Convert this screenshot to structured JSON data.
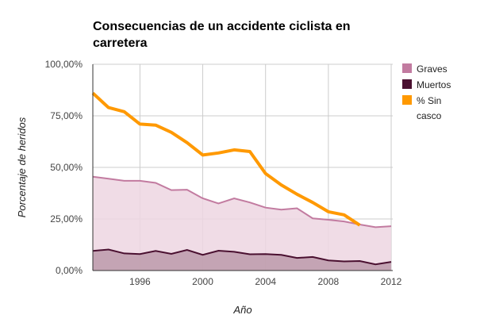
{
  "chart_data": {
    "type": "area",
    "title_lines": [
      "Consecuencias de un accidente ciclista en",
      "carretera"
    ],
    "xlabel": "Año",
    "ylabel": "Porcentaje de heridos",
    "x": [
      1993,
      1994,
      1995,
      1996,
      1997,
      1998,
      1999,
      2000,
      2001,
      2002,
      2003,
      2004,
      2005,
      2006,
      2007,
      2008,
      2009,
      2010,
      2011,
      2012
    ],
    "xticks": [
      "1996",
      "2000",
      "2004",
      "2008",
      "2012"
    ],
    "xtick_values": [
      1996,
      2000,
      2004,
      2008,
      2012
    ],
    "yticks": [
      "0,00%",
      "25,00%",
      "50,00%",
      "75,00%",
      "100,00%"
    ],
    "ytick_values": [
      0,
      25,
      50,
      75,
      100
    ],
    "ylim": [
      0,
      100
    ],
    "grid": true,
    "legend_position": "right",
    "series": [
      {
        "name": "Graves",
        "kind": "area",
        "color": "#c27ba0",
        "fill": "#edd6e2",
        "values": [
          45.5,
          44.5,
          43.5,
          43.5,
          42.5,
          39,
          39.2,
          35,
          32.5,
          35,
          33,
          30.5,
          29.5,
          30.2,
          25.3,
          24.6,
          23.8,
          22.3,
          21,
          21.5
        ]
      },
      {
        "name": "Muertos",
        "kind": "area",
        "color": "#4a1030",
        "fill": "#bc9aaa",
        "values": [
          9.5,
          10.2,
          8.3,
          8,
          9.5,
          8.1,
          10,
          7.6,
          9.6,
          9.1,
          7.9,
          8,
          7.6,
          6.1,
          6.6,
          4.9,
          4.4,
          4.6,
          3,
          4.2
        ]
      },
      {
        "name": "% Sin casco",
        "kind": "line",
        "color": "#ff9900",
        "values": [
          86,
          79,
          77,
          71,
          70.5,
          67,
          62,
          56,
          57,
          58.5,
          57.7,
          47,
          41.5,
          37,
          33,
          28.5,
          27,
          22,
          null,
          null
        ]
      }
    ],
    "legend_lines": {
      "Graves": [
        "Graves"
      ],
      "Muertos": [
        "Muertos"
      ],
      "% Sin casco": [
        "% Sin",
        "casco"
      ]
    }
  }
}
